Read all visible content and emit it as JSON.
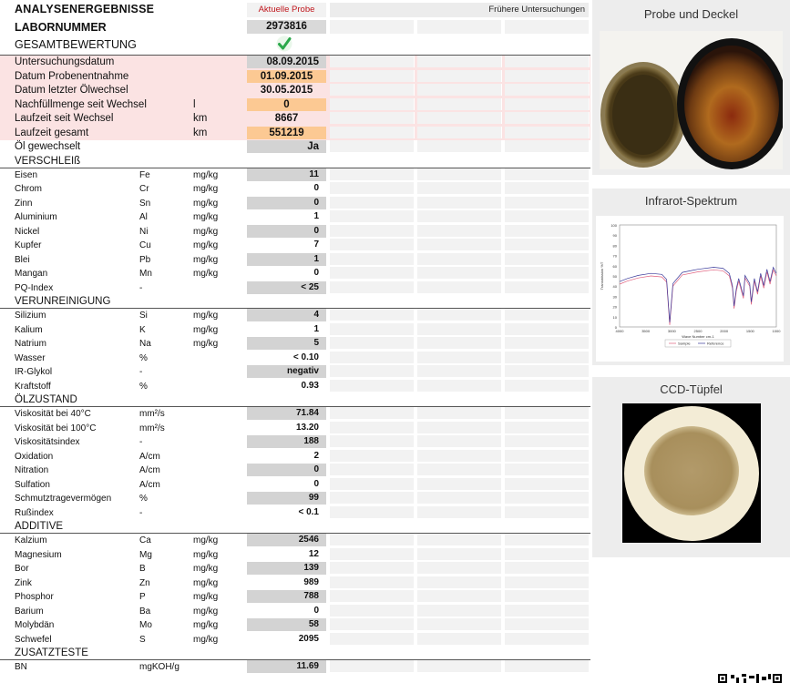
{
  "header": {
    "title": "ANALYSENERGEBNISSE",
    "current_label": "Aktuelle Probe",
    "previous_label": "Frühere Untersuchungen",
    "lab_label": "LABORNUMMER",
    "lab_number": "2973816",
    "overall_label": "GESAMTBEWERTUNG"
  },
  "info": [
    {
      "name": "Untersuchungsdatum",
      "unit": "",
      "value": "08.09.2015",
      "style": "alt",
      "pink": true
    },
    {
      "name": "Datum Probenentnahme",
      "unit": "",
      "value": "01.09.2015",
      "style": "hl",
      "pink": true
    },
    {
      "name": "Datum letzter Ölwechsel",
      "unit": "",
      "value": "30.05.2015",
      "style": "ctr",
      "pink": true
    },
    {
      "name": "Nachfüllmenge seit Wechsel",
      "unit": "l",
      "value": "0",
      "style": "hl",
      "pink": true
    },
    {
      "name": "Laufzeit seit Wechsel",
      "unit": "km",
      "value": "8667",
      "style": "ctr",
      "pink": true
    },
    {
      "name": "Laufzeit gesamt",
      "unit": "km",
      "value": "551219",
      "style": "hl",
      "pink": true
    },
    {
      "name": "Öl gewechselt",
      "unit": "",
      "value": "Ja",
      "style": "alt",
      "pink": false
    }
  ],
  "sections": [
    {
      "title": "VERSCHLEIß",
      "rows": [
        {
          "name": "Eisen",
          "sym": "Fe",
          "unit": "mg/kg",
          "value": "11"
        },
        {
          "name": "Chrom",
          "sym": "Cr",
          "unit": "mg/kg",
          "value": "0"
        },
        {
          "name": "Zinn",
          "sym": "Sn",
          "unit": "mg/kg",
          "value": "0"
        },
        {
          "name": "Aluminium",
          "sym": "Al",
          "unit": "mg/kg",
          "value": "1"
        },
        {
          "name": "Nickel",
          "sym": "Ni",
          "unit": "mg/kg",
          "value": "0"
        },
        {
          "name": "Kupfer",
          "sym": "Cu",
          "unit": "mg/kg",
          "value": "7"
        },
        {
          "name": "Blei",
          "sym": "Pb",
          "unit": "mg/kg",
          "value": "1"
        },
        {
          "name": "Mangan",
          "sym": "Mn",
          "unit": "mg/kg",
          "value": "0"
        },
        {
          "name": "PQ-Index",
          "sym": "-",
          "unit": "",
          "value": "< 25"
        }
      ]
    },
    {
      "title": "VERUNREINIGUNG",
      "rows": [
        {
          "name": "Silizium",
          "sym": "Si",
          "unit": "mg/kg",
          "value": "4"
        },
        {
          "name": "Kalium",
          "sym": "K",
          "unit": "mg/kg",
          "value": "1"
        },
        {
          "name": "Natrium",
          "sym": "Na",
          "unit": "mg/kg",
          "value": "5"
        },
        {
          "name": "Wasser",
          "sym": "%",
          "unit": "",
          "value": "< 0.10"
        },
        {
          "name": "IR-Glykol",
          "sym": "-",
          "unit": "",
          "value": "negativ"
        },
        {
          "name": "Kraftstoff",
          "sym": "%",
          "unit": "",
          "value": "0.93"
        }
      ]
    },
    {
      "title": "ÖLZUSTAND",
      "rows": [
        {
          "name": "Viskosität bei 40°C",
          "sym": "mm²/s",
          "unit": "",
          "value": "71.84"
        },
        {
          "name": "Viskosität bei 100°C",
          "sym": "mm²/s",
          "unit": "",
          "value": "13.20"
        },
        {
          "name": "Viskositätsindex",
          "sym": "-",
          "unit": "",
          "value": "188"
        },
        {
          "name": "Oxidation",
          "sym": "A/cm",
          "unit": "",
          "value": "2"
        },
        {
          "name": "Nitration",
          "sym": "A/cm",
          "unit": "",
          "value": "0"
        },
        {
          "name": "Sulfation",
          "sym": "A/cm",
          "unit": "",
          "value": "0"
        },
        {
          "name": "Schmutztragevermögen",
          "sym": "%",
          "unit": "",
          "value": "99"
        },
        {
          "name": "Rußindex",
          "sym": "-",
          "unit": "",
          "value": "< 0.1"
        }
      ]
    },
    {
      "title": "ADDITIVE",
      "rows": [
        {
          "name": "Kalzium",
          "sym": "Ca",
          "unit": "mg/kg",
          "value": "2546"
        },
        {
          "name": "Magnesium",
          "sym": "Mg",
          "unit": "mg/kg",
          "value": "12"
        },
        {
          "name": "Bor",
          "sym": "B",
          "unit": "mg/kg",
          "value": "139"
        },
        {
          "name": "Zink",
          "sym": "Zn",
          "unit": "mg/kg",
          "value": "989"
        },
        {
          "name": "Phosphor",
          "sym": "P",
          "unit": "mg/kg",
          "value": "788"
        },
        {
          "name": "Barium",
          "sym": "Ba",
          "unit": "mg/kg",
          "value": "0"
        },
        {
          "name": "Molybdän",
          "sym": "Mo",
          "unit": "mg/kg",
          "value": "58"
        },
        {
          "name": "Schwefel",
          "sym": "S",
          "unit": "mg/kg",
          "value": "2095"
        }
      ]
    },
    {
      "title": "ZUSATZTESTE",
      "rows": [
        {
          "name": "BN",
          "sym": "mgKOH/g",
          "unit": "",
          "value": "11.69"
        }
      ]
    }
  ],
  "panels": {
    "sample_title": "Probe und Deckel",
    "ir_title": "Infrarot-Spektrum",
    "ccd_title": "CCD-Tüpfel"
  },
  "ir_chart": {
    "ylabel": "Transmission %T",
    "xlabel": "Wave Number cm-1",
    "yticks": [
      "100",
      "90",
      "80",
      "70",
      "60",
      "50",
      "40",
      "30",
      "20",
      "10",
      "0"
    ],
    "xticks": [
      "4000",
      "3500",
      "3000",
      "2500",
      "2000",
      "1500",
      "1000"
    ],
    "legend": [
      "Sample",
      "Reference"
    ],
    "colors": {
      "sample": "#e0607e",
      "reference": "#3a3a9a"
    }
  },
  "colors": {
    "highlight": "#fcc993",
    "pink_row": "#fbe3e3",
    "current_label": "#c0161c",
    "check": "#2aa84a"
  },
  "icons": {
    "overall_status": "check-icon",
    "qr": "qr-code-icon"
  }
}
